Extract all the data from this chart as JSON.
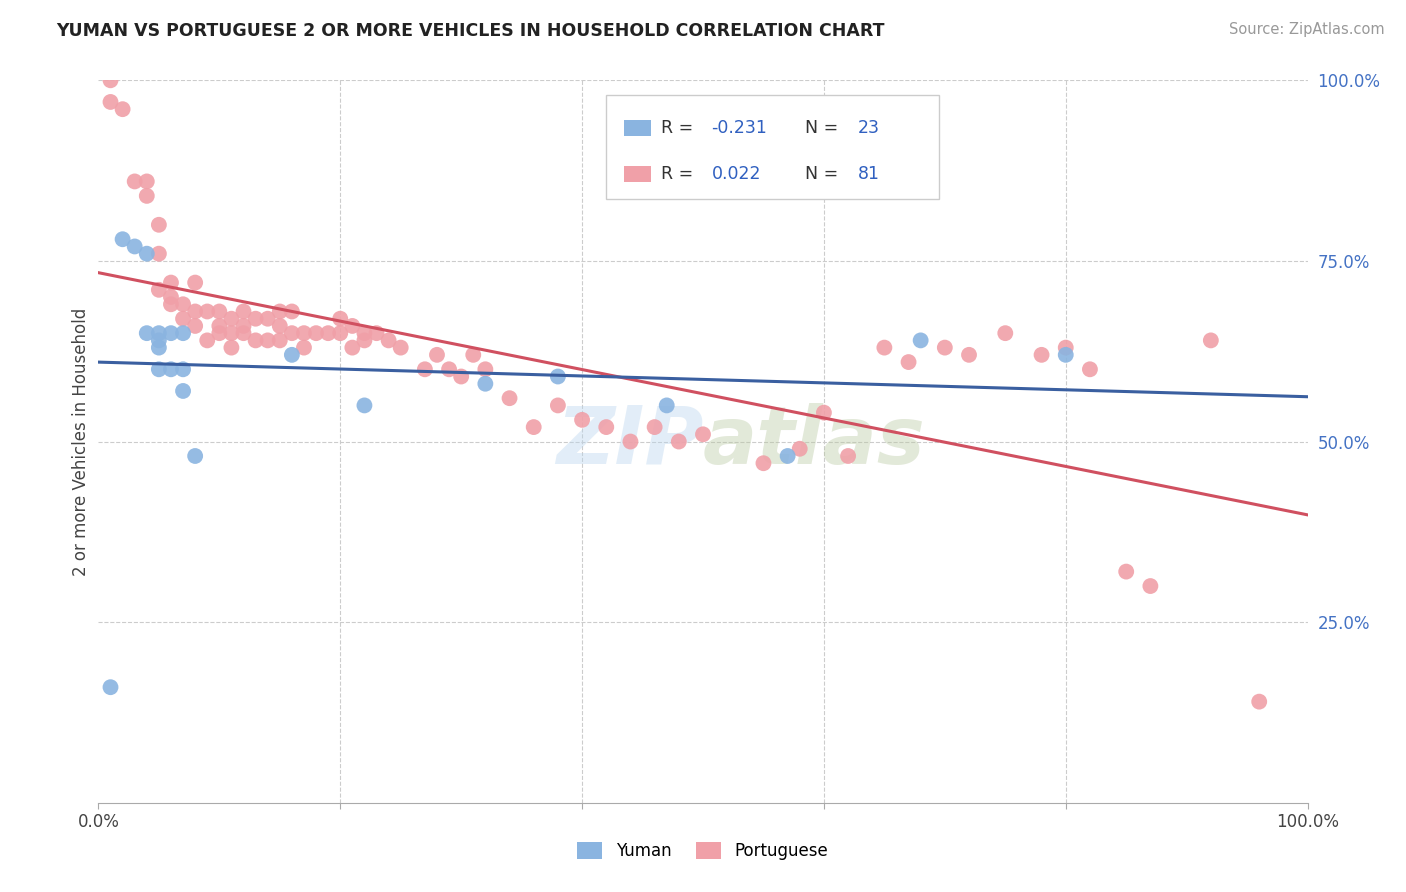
{
  "title": "YUMAN VS PORTUGUESE 2 OR MORE VEHICLES IN HOUSEHOLD CORRELATION CHART",
  "source": "Source: ZipAtlas.com",
  "ylabel": "2 or more Vehicles in Household",
  "xmin": 0.0,
  "xmax": 1.0,
  "ymin": 0.0,
  "ymax": 1.0,
  "xtick_positions": [
    0.0,
    0.2,
    0.4,
    0.6,
    0.8,
    1.0
  ],
  "xtick_labels": [
    "0.0%",
    "",
    "",
    "",
    "",
    "100.0%"
  ],
  "ytick_positions_right": [
    1.0,
    0.75,
    0.5,
    0.25
  ],
  "ytick_labels_right": [
    "100.0%",
    "75.0%",
    "50.0%",
    "25.0%"
  ],
  "R_yuman": -0.231,
  "N_yuman": 23,
  "R_portuguese": 0.022,
  "N_portuguese": 81,
  "color_yuman": "#8ab4e0",
  "color_portuguese": "#f0a0a8",
  "line_color_yuman": "#3a5fa0",
  "line_color_portuguese": "#d05060",
  "legend_R_color": "#3060c0",
  "watermark": "ZIPatlas",
  "yuman_x": [
    0.01,
    0.02,
    0.03,
    0.04,
    0.04,
    0.05,
    0.05,
    0.05,
    0.05,
    0.06,
    0.06,
    0.07,
    0.07,
    0.07,
    0.08,
    0.16,
    0.22,
    0.32,
    0.38,
    0.47,
    0.57,
    0.68,
    0.8
  ],
  "yuman_y": [
    0.16,
    0.78,
    0.77,
    0.76,
    0.65,
    0.65,
    0.64,
    0.63,
    0.6,
    0.65,
    0.6,
    0.65,
    0.6,
    0.57,
    0.48,
    0.62,
    0.55,
    0.58,
    0.59,
    0.55,
    0.48,
    0.64,
    0.62
  ],
  "portuguese_x": [
    0.01,
    0.01,
    0.02,
    0.03,
    0.04,
    0.04,
    0.05,
    0.05,
    0.05,
    0.06,
    0.06,
    0.06,
    0.07,
    0.07,
    0.08,
    0.08,
    0.08,
    0.09,
    0.09,
    0.1,
    0.1,
    0.1,
    0.11,
    0.11,
    0.11,
    0.12,
    0.12,
    0.12,
    0.13,
    0.13,
    0.14,
    0.14,
    0.15,
    0.15,
    0.15,
    0.16,
    0.16,
    0.17,
    0.17,
    0.18,
    0.19,
    0.2,
    0.2,
    0.21,
    0.21,
    0.22,
    0.22,
    0.23,
    0.24,
    0.25,
    0.27,
    0.28,
    0.29,
    0.3,
    0.31,
    0.32,
    0.34,
    0.36,
    0.38,
    0.4,
    0.42,
    0.44,
    0.46,
    0.48,
    0.5,
    0.55,
    0.58,
    0.6,
    0.62,
    0.65,
    0.67,
    0.7,
    0.72,
    0.75,
    0.78,
    0.8,
    0.82,
    0.85,
    0.87,
    0.92,
    0.96
  ],
  "portuguese_y": [
    0.97,
    1.0,
    0.96,
    0.86,
    0.86,
    0.84,
    0.8,
    0.76,
    0.71,
    0.72,
    0.7,
    0.69,
    0.69,
    0.67,
    0.72,
    0.68,
    0.66,
    0.68,
    0.64,
    0.68,
    0.66,
    0.65,
    0.67,
    0.65,
    0.63,
    0.68,
    0.66,
    0.65,
    0.67,
    0.64,
    0.67,
    0.64,
    0.68,
    0.66,
    0.64,
    0.68,
    0.65,
    0.65,
    0.63,
    0.65,
    0.65,
    0.67,
    0.65,
    0.66,
    0.63,
    0.65,
    0.64,
    0.65,
    0.64,
    0.63,
    0.6,
    0.62,
    0.6,
    0.59,
    0.62,
    0.6,
    0.56,
    0.52,
    0.55,
    0.53,
    0.52,
    0.5,
    0.52,
    0.5,
    0.51,
    0.47,
    0.49,
    0.54,
    0.48,
    0.63,
    0.61,
    0.63,
    0.62,
    0.65,
    0.62,
    0.63,
    0.6,
    0.32,
    0.3,
    0.64,
    0.14
  ]
}
